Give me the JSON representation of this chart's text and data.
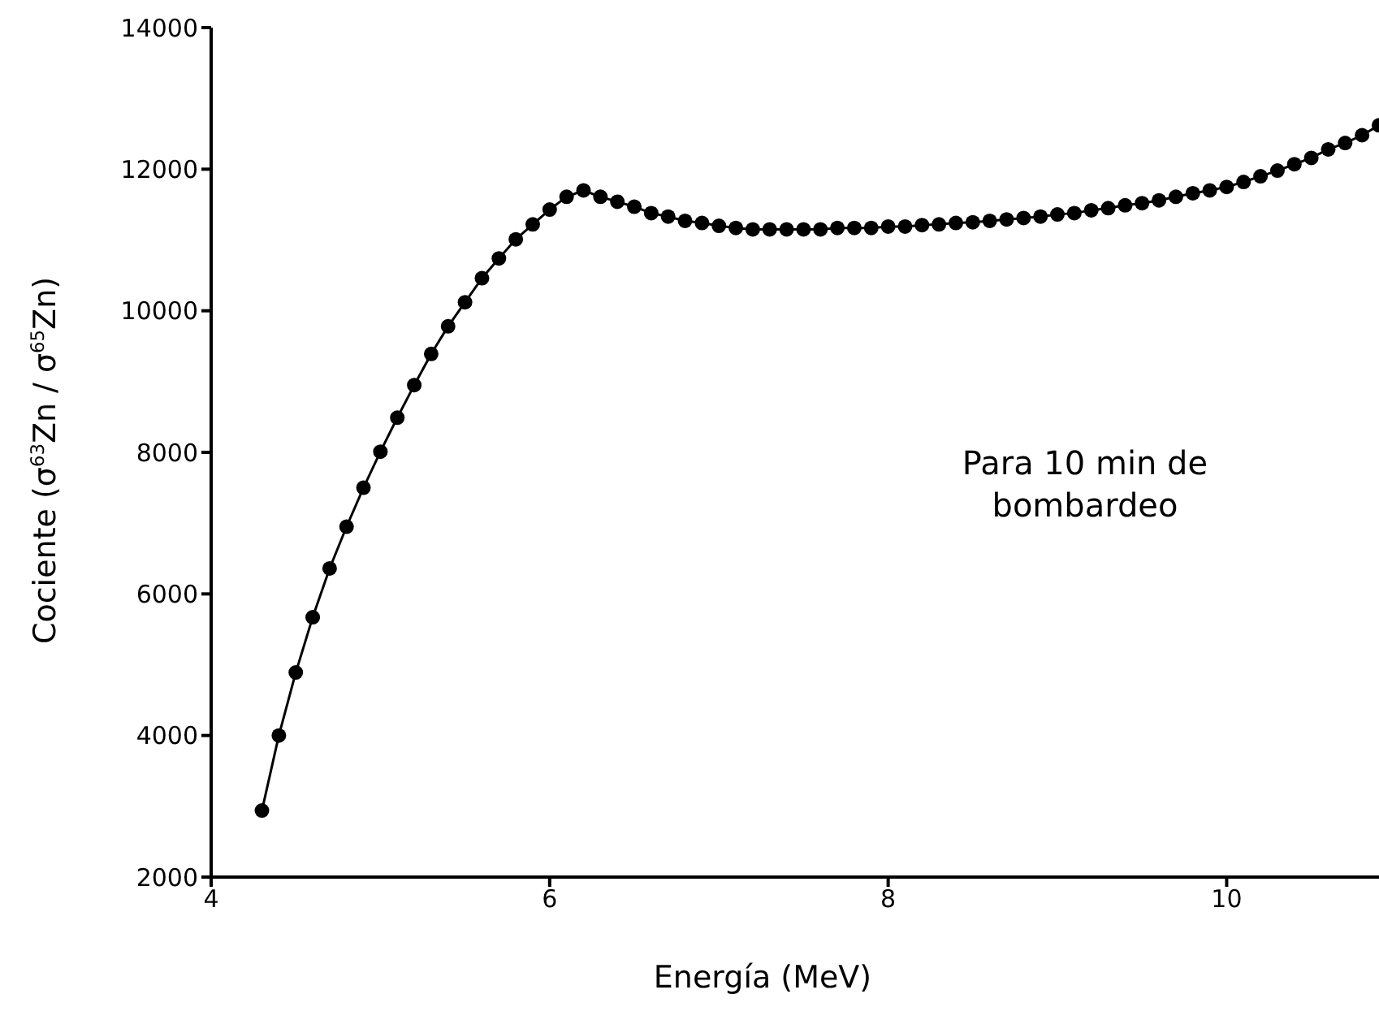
{
  "chart_data": {
    "type": "line",
    "xlabel": "Energía (MeV)",
    "ylabel": "Cociente (σ$^{63}$Zn / σ$^{65}$Zn)",
    "annotations": [
      "Para 10 min de bombardeo"
    ],
    "x": [
      4.3,
      4.4,
      4.5,
      4.6,
      4.7,
      4.8,
      4.9,
      5.0,
      5.1,
      5.2,
      5.3,
      5.4,
      5.5,
      5.6,
      5.7,
      5.8,
      5.9,
      6.0,
      6.1,
      6.2,
      6.3,
      6.4,
      6.5,
      6.6,
      6.7,
      6.8,
      6.9,
      7.0,
      7.1,
      7.2,
      7.3,
      7.4,
      7.5,
      7.6,
      7.7,
      7.8,
      7.9,
      8.0,
      8.1,
      8.2,
      8.3,
      8.4,
      8.5,
      8.6,
      8.7,
      8.8,
      8.9,
      9.0,
      9.1,
      9.2,
      9.3,
      9.4,
      9.5,
      9.6,
      9.7,
      9.8,
      9.9,
      10.0,
      10.1,
      10.2,
      10.3,
      10.4,
      10.5,
      10.6,
      10.7,
      10.8,
      10.9
    ],
    "series": [
      {
        "color": "#000000",
        "values": [
          2940,
          4000,
          4890,
          5670,
          6360,
          6950,
          7500,
          8010,
          8490,
          8950,
          9390,
          9780,
          10120,
          10460,
          10740,
          11010,
          11220,
          11430,
          11610,
          11700,
          11610,
          11540,
          11470,
          11380,
          11330,
          11270,
          11240,
          11200,
          11170,
          11150,
          11150,
          11150,
          11150,
          11150,
          11170,
          11170,
          11170,
          11190,
          11190,
          11210,
          11220,
          11240,
          11250,
          11270,
          11290,
          11310,
          11330,
          11360,
          11380,
          11420,
          11450,
          11490,
          11520,
          11560,
          11610,
          11660,
          11700,
          11750,
          11820,
          11900,
          11980,
          12070,
          12160,
          12280,
          12370,
          12480,
          12620
        ]
      }
    ],
    "xlim": [
      4,
      10.9
    ],
    "xticks": [
      4,
      6,
      8,
      10
    ],
    "ylim": [
      2000,
      14000
    ],
    "yticks": [
      2000,
      4000,
      6000,
      8000,
      10000,
      12000,
      14000
    ],
    "grid": false,
    "legend": false,
    "marker": "circle",
    "line_style": "solid"
  }
}
